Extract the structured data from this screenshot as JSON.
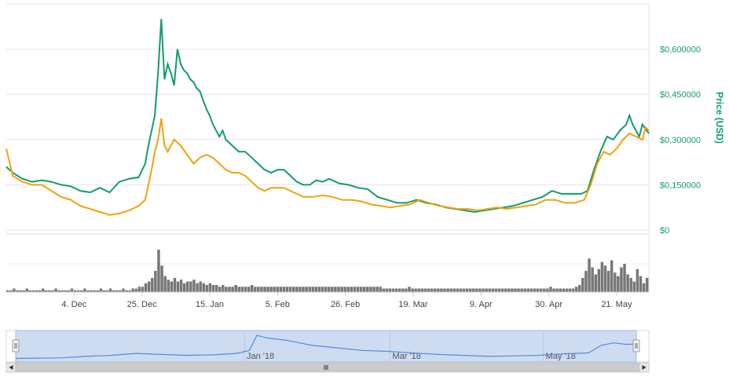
{
  "colors": {
    "market_cap": "#119b6e",
    "price": "#f0a20c",
    "volume": "#777777",
    "navigator_line": "#4f8fd8",
    "navigator_fill": "#c5d6ee",
    "grid": "#e6e6e6"
  },
  "chart_data": {
    "type": "line",
    "y_axis_title": "Price (USD)",
    "y_ticks": [
      "$0",
      "$0,150000",
      "$0,300000",
      "$0,450000",
      "$0,600000"
    ],
    "ylim": [
      0,
      0.75
    ],
    "x_ticks": [
      "4. Dec",
      "25. Dec",
      "15. Jan",
      "5. Feb",
      "26. Feb",
      "19. Mar",
      "9. Apr",
      "30. Apr",
      "21. May"
    ],
    "x_tick_day_index": [
      21,
      42,
      63,
      84,
      105,
      126,
      147,
      168,
      189
    ],
    "x_range_days": [
      0,
      199
    ],
    "grid": true,
    "legend": "none",
    "series": [
      {
        "role": "market_cap",
        "points": [
          [
            0,
            0.21
          ],
          [
            2,
            0.19
          ],
          [
            5,
            0.17
          ],
          [
            8,
            0.16
          ],
          [
            11,
            0.165
          ],
          [
            14,
            0.16
          ],
          [
            17,
            0.15
          ],
          [
            20,
            0.145
          ],
          [
            23,
            0.13
          ],
          [
            26,
            0.125
          ],
          [
            29,
            0.14
          ],
          [
            32,
            0.125
          ],
          [
            35,
            0.16
          ],
          [
            38,
            0.17
          ],
          [
            41,
            0.175
          ],
          [
            43,
            0.22
          ],
          [
            44,
            0.28
          ],
          [
            45,
            0.33
          ],
          [
            46,
            0.38
          ],
          [
            47,
            0.52
          ],
          [
            48,
            0.7
          ],
          [
            49,
            0.5
          ],
          [
            50,
            0.55
          ],
          [
            51,
            0.52
          ],
          [
            52,
            0.48
          ],
          [
            53,
            0.6
          ],
          [
            54,
            0.55
          ],
          [
            55,
            0.53
          ],
          [
            56,
            0.52
          ],
          [
            57,
            0.5
          ],
          [
            58,
            0.49
          ],
          [
            59,
            0.47
          ],
          [
            60,
            0.46
          ],
          [
            61,
            0.43
          ],
          [
            62,
            0.4
          ],
          [
            63,
            0.38
          ],
          [
            64,
            0.35
          ],
          [
            65,
            0.33
          ],
          [
            66,
            0.31
          ],
          [
            67,
            0.33
          ],
          [
            68,
            0.3
          ],
          [
            70,
            0.28
          ],
          [
            72,
            0.26
          ],
          [
            74,
            0.26
          ],
          [
            76,
            0.24
          ],
          [
            78,
            0.22
          ],
          [
            80,
            0.2
          ],
          [
            82,
            0.19
          ],
          [
            84,
            0.2
          ],
          [
            86,
            0.2
          ],
          [
            88,
            0.18
          ],
          [
            90,
            0.16
          ],
          [
            92,
            0.15
          ],
          [
            94,
            0.15
          ],
          [
            96,
            0.165
          ],
          [
            98,
            0.16
          ],
          [
            100,
            0.17
          ],
          [
            103,
            0.155
          ],
          [
            106,
            0.15
          ],
          [
            109,
            0.14
          ],
          [
            112,
            0.135
          ],
          [
            115,
            0.11
          ],
          [
            118,
            0.1
          ],
          [
            121,
            0.09
          ],
          [
            124,
            0.09
          ],
          [
            127,
            0.1
          ],
          [
            130,
            0.09
          ],
          [
            133,
            0.085
          ],
          [
            136,
            0.075
          ],
          [
            139,
            0.07
          ],
          [
            142,
            0.065
          ],
          [
            145,
            0.06
          ],
          [
            148,
            0.065
          ],
          [
            151,
            0.07
          ],
          [
            154,
            0.075
          ],
          [
            157,
            0.08
          ],
          [
            160,
            0.09
          ],
          [
            163,
            0.1
          ],
          [
            166,
            0.11
          ],
          [
            169,
            0.13
          ],
          [
            172,
            0.12
          ],
          [
            175,
            0.12
          ],
          [
            178,
            0.12
          ],
          [
            180,
            0.13
          ],
          [
            182,
            0.2
          ],
          [
            184,
            0.26
          ],
          [
            186,
            0.31
          ],
          [
            188,
            0.3
          ],
          [
            190,
            0.33
          ],
          [
            192,
            0.35
          ],
          [
            193,
            0.38
          ],
          [
            194,
            0.35
          ],
          [
            196,
            0.31
          ],
          [
            197,
            0.35
          ],
          [
            199,
            0.32
          ]
        ]
      },
      {
        "role": "price",
        "points": [
          [
            0,
            0.27
          ],
          [
            2,
            0.18
          ],
          [
            5,
            0.16
          ],
          [
            8,
            0.15
          ],
          [
            11,
            0.15
          ],
          [
            14,
            0.13
          ],
          [
            17,
            0.11
          ],
          [
            20,
            0.1
          ],
          [
            23,
            0.08
          ],
          [
            26,
            0.07
          ],
          [
            29,
            0.06
          ],
          [
            32,
            0.05
          ],
          [
            35,
            0.055
          ],
          [
            38,
            0.065
          ],
          [
            41,
            0.08
          ],
          [
            43,
            0.1
          ],
          [
            44,
            0.15
          ],
          [
            45,
            0.2
          ],
          [
            46,
            0.26
          ],
          [
            47,
            0.3
          ],
          [
            48,
            0.37
          ],
          [
            49,
            0.28
          ],
          [
            50,
            0.26
          ],
          [
            52,
            0.3
          ],
          [
            54,
            0.28
          ],
          [
            56,
            0.25
          ],
          [
            58,
            0.22
          ],
          [
            60,
            0.24
          ],
          [
            62,
            0.25
          ],
          [
            64,
            0.24
          ],
          [
            66,
            0.22
          ],
          [
            68,
            0.2
          ],
          [
            70,
            0.19
          ],
          [
            72,
            0.19
          ],
          [
            74,
            0.18
          ],
          [
            76,
            0.16
          ],
          [
            78,
            0.14
          ],
          [
            80,
            0.13
          ],
          [
            82,
            0.14
          ],
          [
            84,
            0.14
          ],
          [
            86,
            0.14
          ],
          [
            88,
            0.13
          ],
          [
            90,
            0.12
          ],
          [
            92,
            0.11
          ],
          [
            95,
            0.11
          ],
          [
            98,
            0.115
          ],
          [
            101,
            0.11
          ],
          [
            104,
            0.1
          ],
          [
            107,
            0.1
          ],
          [
            110,
            0.095
          ],
          [
            113,
            0.085
          ],
          [
            116,
            0.08
          ],
          [
            119,
            0.075
          ],
          [
            122,
            0.08
          ],
          [
            125,
            0.085
          ],
          [
            128,
            0.1
          ],
          [
            131,
            0.09
          ],
          [
            134,
            0.08
          ],
          [
            137,
            0.075
          ],
          [
            140,
            0.07
          ],
          [
            143,
            0.07
          ],
          [
            146,
            0.065
          ],
          [
            149,
            0.07
          ],
          [
            152,
            0.075
          ],
          [
            155,
            0.07
          ],
          [
            158,
            0.075
          ],
          [
            161,
            0.08
          ],
          [
            164,
            0.085
          ],
          [
            167,
            0.1
          ],
          [
            170,
            0.1
          ],
          [
            173,
            0.09
          ],
          [
            176,
            0.09
          ],
          [
            179,
            0.1
          ],
          [
            181,
            0.15
          ],
          [
            183,
            0.22
          ],
          [
            185,
            0.26
          ],
          [
            187,
            0.25
          ],
          [
            189,
            0.27
          ],
          [
            191,
            0.3
          ],
          [
            193,
            0.32
          ],
          [
            195,
            0.31
          ],
          [
            197,
            0.3
          ],
          [
            198,
            0.34
          ],
          [
            199,
            0.33
          ]
        ]
      },
      {
        "role": "volume",
        "values": [
          1,
          1,
          2,
          1,
          1,
          1,
          2,
          1,
          1,
          1,
          1,
          2,
          1,
          1,
          1,
          2,
          1,
          1,
          1,
          1,
          2,
          1,
          1,
          1,
          2,
          1,
          1,
          1,
          1,
          2,
          1,
          1,
          2,
          1,
          1,
          1,
          2,
          1,
          1,
          2,
          2,
          3,
          3,
          5,
          6,
          8,
          12,
          24,
          15,
          9,
          7,
          6,
          8,
          6,
          7,
          5,
          6,
          6,
          7,
          5,
          6,
          5,
          4,
          5,
          4,
          4,
          3,
          4,
          3,
          3,
          3,
          4,
          3,
          3,
          3,
          3,
          4,
          3,
          3,
          3,
          3,
          3,
          3,
          3,
          3,
          3,
          3,
          3,
          3,
          3,
          3,
          3,
          3,
          3,
          3,
          3,
          3,
          3,
          3,
          3,
          3,
          3,
          3,
          3,
          3,
          3,
          3,
          3,
          3,
          3,
          3,
          3,
          3,
          3,
          3,
          3,
          3,
          2,
          2,
          2,
          2,
          2,
          2,
          2,
          2,
          3,
          2,
          2,
          2,
          2,
          2,
          2,
          2,
          2,
          2,
          2,
          2,
          2,
          2,
          2,
          2,
          2,
          2,
          2,
          2,
          2,
          2,
          2,
          2,
          2,
          2,
          2,
          2,
          2,
          2,
          2,
          2,
          2,
          2,
          2,
          2,
          2,
          2,
          2,
          2,
          2,
          2,
          2,
          2,
          3,
          2,
          2,
          2,
          2,
          2,
          2,
          2,
          3,
          4,
          8,
          12,
          19,
          14,
          10,
          13,
          17,
          15,
          12,
          18,
          11,
          9,
          14,
          16,
          10,
          8,
          6,
          13,
          9,
          5,
          8
        ]
      }
    ],
    "navigator": {
      "tick_labels": [
        "Jan '18",
        "Mar '18",
        "May '18"
      ],
      "tick_day_index": [
        43,
        101,
        162
      ],
      "range_days": [
        -48,
        199
      ],
      "line_points": [
        [
          -48,
          0.04
        ],
        [
          -40,
          0.045
        ],
        [
          -30,
          0.05
        ],
        [
          -20,
          0.08
        ],
        [
          -10,
          0.1
        ],
        [
          0,
          0.14
        ],
        [
          10,
          0.12
        ],
        [
          20,
          0.1
        ],
        [
          30,
          0.11
        ],
        [
          40,
          0.14
        ],
        [
          45,
          0.2
        ],
        [
          48,
          0.5
        ],
        [
          52,
          0.45
        ],
        [
          60,
          0.4
        ],
        [
          70,
          0.3
        ],
        [
          80,
          0.25
        ],
        [
          90,
          0.2
        ],
        [
          100,
          0.18
        ],
        [
          110,
          0.15
        ],
        [
          120,
          0.12
        ],
        [
          130,
          0.1
        ],
        [
          140,
          0.08
        ],
        [
          150,
          0.09
        ],
        [
          160,
          0.1
        ],
        [
          170,
          0.13
        ],
        [
          180,
          0.15
        ],
        [
          185,
          0.3
        ],
        [
          190,
          0.35
        ],
        [
          195,
          0.32
        ],
        [
          199,
          0.33
        ]
      ]
    }
  }
}
